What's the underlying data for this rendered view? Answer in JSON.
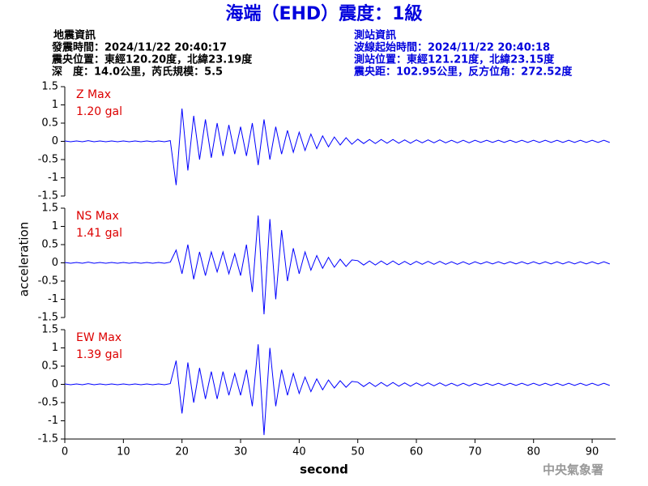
{
  "chart_data": {
    "type": "line",
    "title": "海端（EHD）震度：1級",
    "info_left": [
      "地震資訊",
      "發震時間：2024/11/22 20:40:17",
      "震央位置：東經120.20度，北緯23.19度",
      "深　度：14.0公里，芮氏規模：5.5"
    ],
    "info_right": [
      "測站資訊",
      "波線起始時間：2024/11/22 20:40:18",
      "測站位置：東經121.21度，北緯23.15度",
      "震央距：102.95公里，反方位角：272.52度"
    ],
    "ylabel": "acceleration",
    "xlabel": "second",
    "footer": "中央氣象署",
    "xlim": [
      0,
      94
    ],
    "xticks": [
      0,
      10,
      20,
      30,
      40,
      50,
      60,
      70,
      80,
      90
    ],
    "x": [
      0,
      1,
      2,
      3,
      4,
      5,
      6,
      7,
      8,
      9,
      10,
      11,
      12,
      13,
      14,
      15,
      16,
      17,
      18,
      19,
      20,
      21,
      22,
      23,
      24,
      25,
      26,
      27,
      28,
      29,
      30,
      31,
      32,
      33,
      34,
      35,
      36,
      37,
      38,
      39,
      40,
      41,
      42,
      43,
      44,
      45,
      46,
      47,
      48,
      49,
      50,
      51,
      52,
      53,
      54,
      55,
      56,
      57,
      58,
      59,
      60,
      61,
      62,
      63,
      64,
      65,
      66,
      67,
      68,
      69,
      70,
      71,
      72,
      73,
      74,
      75,
      76,
      77,
      78,
      79,
      80,
      81,
      82,
      83,
      84,
      85,
      86,
      87,
      88,
      89,
      90,
      91,
      92,
      93
    ],
    "panels": [
      {
        "label": "Z Max",
        "max_label": "1.20 gal",
        "color": "#0000ff",
        "ylim": [
          -1.5,
          1.5
        ],
        "yticks": [
          1.5,
          1,
          0.5,
          0,
          -0.5,
          -1,
          -1.5
        ],
        "values": [
          0.01,
          -0.01,
          0.01,
          -0.01,
          0.02,
          -0.01,
          0.01,
          -0.01,
          0.01,
          -0.01,
          0.01,
          -0.01,
          0.01,
          -0.01,
          0.01,
          -0.01,
          0.01,
          -0.01,
          0.02,
          -1.2,
          0.9,
          -0.8,
          0.7,
          -0.5,
          0.6,
          -0.45,
          0.5,
          -0.4,
          0.45,
          -0.35,
          0.4,
          -0.4,
          0.5,
          -0.65,
          0.6,
          -0.5,
          0.4,
          -0.35,
          0.3,
          -0.3,
          0.25,
          -0.25,
          0.2,
          -0.2,
          0.15,
          -0.15,
          0.12,
          -0.1,
          0.1,
          -0.08,
          0.06,
          -0.06,
          0.05,
          -0.06,
          0.05,
          -0.05,
          0.05,
          -0.05,
          0.04,
          -0.05,
          0.04,
          -0.04,
          0.04,
          -0.04,
          0.04,
          -0.04,
          0.03,
          -0.04,
          0.03,
          -0.04,
          0.03,
          -0.03,
          0.03,
          -0.03,
          0.03,
          -0.03,
          0.03,
          -0.03,
          0.03,
          -0.03,
          0.03,
          -0.03,
          0.03,
          -0.03,
          0.03,
          -0.03,
          0.03,
          -0.03,
          0.03,
          -0.03,
          0.03,
          -0.03,
          0.03,
          -0.03
        ]
      },
      {
        "label": "NS Max",
        "max_label": "1.41 gal",
        "color": "#0000ff",
        "ylim": [
          -1.5,
          1.5
        ],
        "yticks": [
          1.5,
          1,
          0.5,
          0,
          -0.5,
          -1,
          -1.5
        ],
        "values": [
          0.01,
          -0.01,
          0.01,
          -0.01,
          0.02,
          -0.01,
          0.01,
          -0.01,
          0.01,
          -0.01,
          0.01,
          -0.01,
          0.01,
          -0.01,
          0.01,
          -0.01,
          0.01,
          -0.01,
          0.02,
          0.35,
          -0.3,
          0.5,
          -0.45,
          0.3,
          -0.35,
          0.3,
          -0.25,
          0.3,
          -0.3,
          0.25,
          -0.35,
          0.5,
          -0.8,
          1.3,
          -1.41,
          1.2,
          -1.0,
          0.9,
          -0.5,
          0.4,
          -0.3,
          0.3,
          -0.2,
          0.2,
          -0.15,
          0.15,
          -0.12,
          0.1,
          -0.1,
          0.08,
          0.06,
          -0.06,
          0.05,
          -0.06,
          0.05,
          -0.05,
          0.05,
          -0.05,
          0.04,
          -0.05,
          0.04,
          -0.04,
          0.04,
          -0.04,
          0.04,
          -0.04,
          0.03,
          -0.04,
          0.03,
          -0.04,
          0.03,
          -0.03,
          0.03,
          -0.03,
          0.03,
          -0.03,
          0.03,
          -0.03,
          0.03,
          -0.03,
          0.03,
          -0.03,
          0.03,
          -0.03,
          0.03,
          -0.03,
          0.03,
          -0.03,
          0.03,
          -0.03,
          0.03,
          -0.03,
          0.03,
          -0.03
        ]
      },
      {
        "label": "EW Max",
        "max_label": "1.39 gal",
        "color": "#0000ff",
        "ylim": [
          -1.5,
          1.5
        ],
        "yticks": [
          1.5,
          1,
          0.5,
          0,
          -0.5,
          -1,
          -1.5
        ],
        "values": [
          0.01,
          -0.01,
          0.01,
          -0.01,
          0.02,
          -0.01,
          0.01,
          -0.01,
          0.01,
          -0.01,
          0.01,
          -0.01,
          0.01,
          -0.01,
          0.01,
          -0.01,
          0.01,
          -0.01,
          0.02,
          0.65,
          -0.8,
          0.6,
          -0.5,
          0.45,
          -0.4,
          0.35,
          -0.4,
          0.35,
          -0.3,
          0.3,
          -0.3,
          0.4,
          -0.6,
          1.1,
          -1.39,
          1.0,
          -0.6,
          0.4,
          -0.3,
          0.3,
          -0.25,
          0.2,
          -0.2,
          0.15,
          -0.15,
          0.12,
          -0.1,
          0.1,
          -0.08,
          0.08,
          0.06,
          -0.06,
          0.05,
          -0.06,
          0.05,
          -0.05,
          0.05,
          -0.05,
          0.04,
          -0.05,
          0.04,
          -0.04,
          0.04,
          -0.04,
          0.04,
          -0.04,
          0.03,
          -0.04,
          0.03,
          -0.04,
          0.03,
          -0.03,
          0.03,
          -0.03,
          0.03,
          -0.03,
          0.03,
          -0.03,
          0.03,
          -0.03,
          0.03,
          -0.03,
          0.03,
          -0.03,
          0.03,
          -0.03,
          0.03,
          -0.03,
          0.03,
          -0.03,
          0.03,
          -0.03,
          0.03,
          -0.03
        ]
      }
    ]
  }
}
